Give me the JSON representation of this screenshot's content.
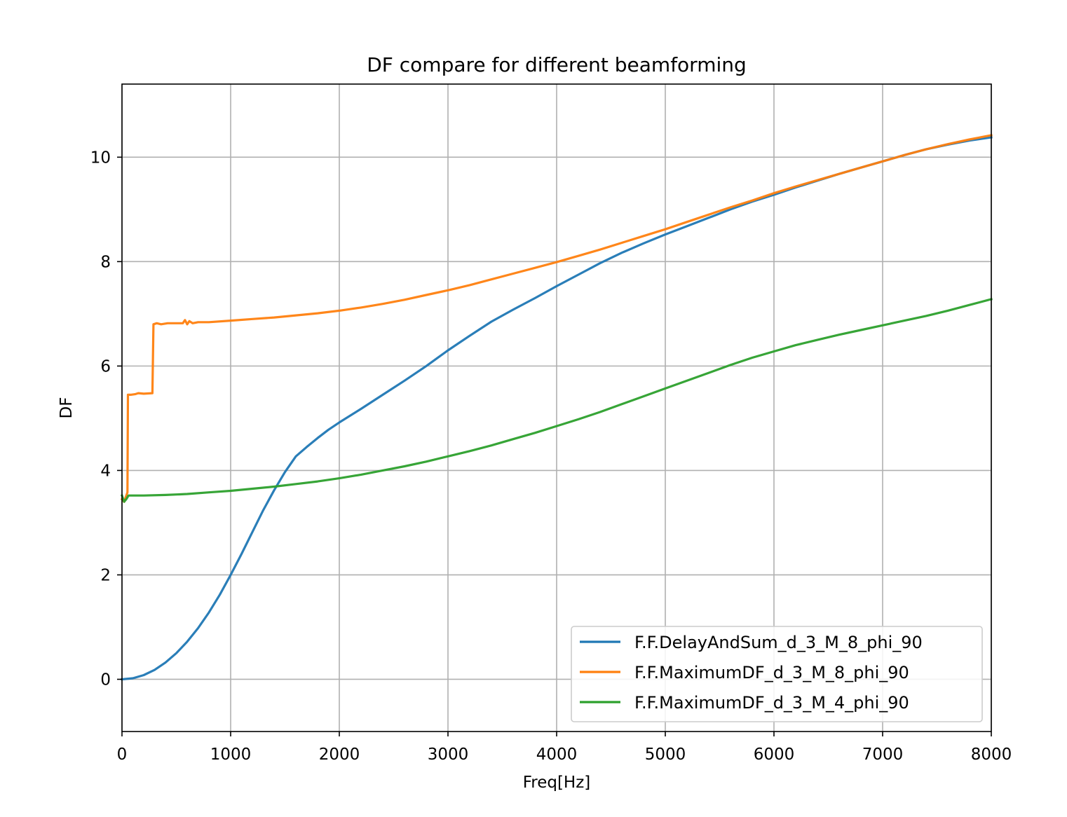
{
  "chart_data": {
    "type": "line",
    "title": "DF compare for different beamforming",
    "xlabel": "Freq[Hz]",
    "ylabel": "DF",
    "xlim": [
      0,
      8000
    ],
    "ylim": [
      -1,
      11.4
    ],
    "xticks": [
      0,
      1000,
      2000,
      3000,
      4000,
      5000,
      6000,
      7000,
      8000
    ],
    "yticks": [
      0,
      2,
      4,
      6,
      8,
      10
    ],
    "grid": true,
    "legend_position": "lower-right",
    "series": [
      {
        "name": "F.F.DelayAndSum_d_3_M_8_phi_90",
        "color": "#1f77b4",
        "points": [
          [
            0,
            0
          ],
          [
            100,
            0.02
          ],
          [
            200,
            0.08
          ],
          [
            300,
            0.18
          ],
          [
            400,
            0.32
          ],
          [
            500,
            0.5
          ],
          [
            600,
            0.72
          ],
          [
            700,
            0.98
          ],
          [
            800,
            1.28
          ],
          [
            900,
            1.62
          ],
          [
            1000,
            2.0
          ],
          [
            1100,
            2.4
          ],
          [
            1200,
            2.82
          ],
          [
            1300,
            3.24
          ],
          [
            1400,
            3.62
          ],
          [
            1500,
            3.97
          ],
          [
            1600,
            4.27
          ],
          [
            1700,
            4.45
          ],
          [
            1800,
            4.62
          ],
          [
            1900,
            4.78
          ],
          [
            2000,
            4.92
          ],
          [
            2200,
            5.18
          ],
          [
            2400,
            5.45
          ],
          [
            2600,
            5.72
          ],
          [
            2800,
            6.0
          ],
          [
            3000,
            6.3
          ],
          [
            3200,
            6.58
          ],
          [
            3400,
            6.85
          ],
          [
            3600,
            7.08
          ],
          [
            3800,
            7.3
          ],
          [
            4000,
            7.53
          ],
          [
            4200,
            7.75
          ],
          [
            4400,
            7.97
          ],
          [
            4600,
            8.17
          ],
          [
            4800,
            8.35
          ],
          [
            5000,
            8.52
          ],
          [
            5200,
            8.68
          ],
          [
            5400,
            8.84
          ],
          [
            5600,
            9.0
          ],
          [
            5800,
            9.15
          ],
          [
            6000,
            9.28
          ],
          [
            6200,
            9.42
          ],
          [
            6400,
            9.55
          ],
          [
            6600,
            9.68
          ],
          [
            6800,
            9.8
          ],
          [
            7000,
            9.92
          ],
          [
            7200,
            10.04
          ],
          [
            7400,
            10.15
          ],
          [
            7600,
            10.24
          ],
          [
            7800,
            10.32
          ],
          [
            8000,
            10.38
          ]
        ]
      },
      {
        "name": "F.F.MaximumDF_d_3_M_8_phi_90",
        "color": "#ff7f0e",
        "points": [
          [
            0,
            3.45
          ],
          [
            20,
            3.4
          ],
          [
            40,
            3.52
          ],
          [
            50,
            3.58
          ],
          [
            55,
            5.45
          ],
          [
            80,
            5.45
          ],
          [
            120,
            5.46
          ],
          [
            150,
            5.48
          ],
          [
            200,
            5.47
          ],
          [
            280,
            5.48
          ],
          [
            290,
            6.8
          ],
          [
            320,
            6.82
          ],
          [
            360,
            6.8
          ],
          [
            420,
            6.82
          ],
          [
            500,
            6.82
          ],
          [
            560,
            6.82
          ],
          [
            580,
            6.88
          ],
          [
            600,
            6.8
          ],
          [
            620,
            6.86
          ],
          [
            650,
            6.82
          ],
          [
            700,
            6.84
          ],
          [
            800,
            6.84
          ],
          [
            1000,
            6.87
          ],
          [
            1200,
            6.9
          ],
          [
            1400,
            6.93
          ],
          [
            1600,
            6.97
          ],
          [
            1800,
            7.01
          ],
          [
            2000,
            7.06
          ],
          [
            2200,
            7.12
          ],
          [
            2400,
            7.19
          ],
          [
            2600,
            7.27
          ],
          [
            2800,
            7.36
          ],
          [
            3000,
            7.45
          ],
          [
            3200,
            7.55
          ],
          [
            3400,
            7.66
          ],
          [
            3600,
            7.77
          ],
          [
            3800,
            7.88
          ],
          [
            4000,
            7.99
          ],
          [
            4200,
            8.11
          ],
          [
            4400,
            8.23
          ],
          [
            4600,
            8.36
          ],
          [
            4800,
            8.49
          ],
          [
            5000,
            8.62
          ],
          [
            5200,
            8.76
          ],
          [
            5400,
            8.9
          ],
          [
            5600,
            9.04
          ],
          [
            5800,
            9.17
          ],
          [
            6000,
            9.31
          ],
          [
            6200,
            9.44
          ],
          [
            6400,
            9.56
          ],
          [
            6600,
            9.68
          ],
          [
            6800,
            9.8
          ],
          [
            7000,
            9.92
          ],
          [
            7200,
            10.04
          ],
          [
            7400,
            10.15
          ],
          [
            7600,
            10.25
          ],
          [
            7800,
            10.34
          ],
          [
            8000,
            10.42
          ]
        ]
      },
      {
        "name": "F.F.MaximumDF_d_3_M_4_phi_90",
        "color": "#2ca02c",
        "points": [
          [
            0,
            3.52
          ],
          [
            20,
            3.4
          ],
          [
            40,
            3.45
          ],
          [
            60,
            3.52
          ],
          [
            200,
            3.52
          ],
          [
            400,
            3.53
          ],
          [
            600,
            3.55
          ],
          [
            800,
            3.58
          ],
          [
            1000,
            3.61
          ],
          [
            1200,
            3.65
          ],
          [
            1400,
            3.69
          ],
          [
            1600,
            3.74
          ],
          [
            1800,
            3.79
          ],
          [
            2000,
            3.85
          ],
          [
            2200,
            3.92
          ],
          [
            2400,
            4.0
          ],
          [
            2600,
            4.08
          ],
          [
            2800,
            4.17
          ],
          [
            3000,
            4.27
          ],
          [
            3200,
            4.37
          ],
          [
            3400,
            4.48
          ],
          [
            3600,
            4.6
          ],
          [
            3800,
            4.72
          ],
          [
            4000,
            4.85
          ],
          [
            4200,
            4.98
          ],
          [
            4400,
            5.12
          ],
          [
            4600,
            5.27
          ],
          [
            4800,
            5.42
          ],
          [
            5000,
            5.57
          ],
          [
            5200,
            5.72
          ],
          [
            5400,
            5.87
          ],
          [
            5600,
            6.02
          ],
          [
            5800,
            6.16
          ],
          [
            6000,
            6.28
          ],
          [
            6200,
            6.4
          ],
          [
            6400,
            6.5
          ],
          [
            6600,
            6.6
          ],
          [
            6800,
            6.69
          ],
          [
            7000,
            6.78
          ],
          [
            7200,
            6.87
          ],
          [
            7400,
            6.96
          ],
          [
            7600,
            7.06
          ],
          [
            7800,
            7.17
          ],
          [
            8000,
            7.28
          ]
        ]
      }
    ]
  }
}
